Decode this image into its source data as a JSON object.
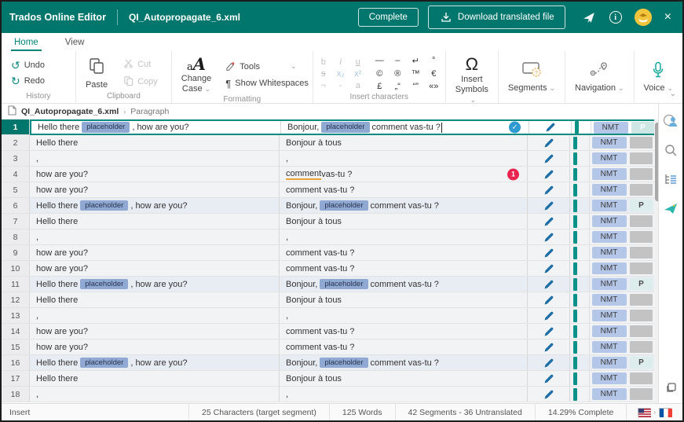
{
  "header": {
    "app_title": "Trados Online Editor",
    "document_tab": "QI_Autopropagate_6.xml",
    "complete_button": "Complete",
    "download_button": "Download translated file",
    "icons": [
      "pin-icon",
      "info-icon",
      "user-avatar",
      "close-icon"
    ]
  },
  "tabs": [
    {
      "label": "Home",
      "active": true
    },
    {
      "label": "View",
      "active": false
    }
  ],
  "ribbon": {
    "history": {
      "label": "History",
      "undo": "Undo",
      "redo": "Redo"
    },
    "clipboard": {
      "label": "Clipboard",
      "paste": "Paste",
      "cut": "Cut",
      "copy": "Copy"
    },
    "formatting": {
      "label": "Formatting",
      "change_case": "Change Case",
      "tools": "Tools",
      "show_whitespaces": "Show Whitespaces"
    },
    "insert_characters": {
      "label": "Insert characters",
      "disabled_chars": [
        "b",
        "i",
        "u",
        "s",
        "x₂",
        "x²",
        "¬",
        "-",
        "a"
      ],
      "special_chars": [
        "—",
        "–",
        "↵",
        "°",
        "©",
        "®",
        "™",
        "€",
        "£",
        "„“",
        "“”",
        "«»"
      ],
      "insert_symbols": "Insert Symbols"
    },
    "segments_label": "Segments",
    "navigation_label": "Navigation",
    "voice_label": "Voice"
  },
  "breadcrumb": {
    "file": "QI_Autopropagate_6.xml",
    "section": "Paragraph"
  },
  "table": {
    "nmt_label": "NMT",
    "rows": [
      {
        "num": "1",
        "source": [
          [
            "t",
            "Hello there "
          ],
          [
            "ph",
            "placeholder"
          ],
          [
            "t",
            " , how are you?"
          ]
        ],
        "target": [
          [
            "t",
            "Bonjour, "
          ],
          [
            "ph",
            "placeholder"
          ],
          [
            "t",
            " comment vas-tu ?"
          ]
        ],
        "state": "selected",
        "status": "confirmed",
        "badge": "NMT",
        "right": "P",
        "right_style": "p-sel"
      },
      {
        "num": "2",
        "source": [
          [
            "t",
            "Hello there"
          ]
        ],
        "target": [
          [
            "t",
            "Bonjour à tous"
          ]
        ],
        "state": "",
        "status": "",
        "badge": "NMT",
        "right": "",
        "right_style": "gray"
      },
      {
        "num": "3",
        "source": [
          [
            "t",
            ","
          ]
        ],
        "target": [
          [
            "t",
            ","
          ]
        ],
        "state": "",
        "status": "",
        "badge": "NMT",
        "right": "",
        "right_style": "gray"
      },
      {
        "num": "4",
        "source": [
          [
            "t",
            "how are you?"
          ]
        ],
        "target": [
          [
            "warn",
            "comment"
          ],
          [
            "t",
            " vas-tu ?"
          ]
        ],
        "state": "",
        "status": "error",
        "error_count": "1",
        "badge": "NMT",
        "right": "",
        "right_style": "gray"
      },
      {
        "num": "5",
        "source": [
          [
            "t",
            "how are you?"
          ]
        ],
        "target": [
          [
            "t",
            "comment vas-tu ?"
          ]
        ],
        "state": "",
        "status": "",
        "badge": "NMT",
        "right": "",
        "right_style": "gray"
      },
      {
        "num": "6",
        "source": [
          [
            "t",
            "Hello there "
          ],
          [
            "ph",
            "placeholder"
          ],
          [
            "t",
            " , how are you?"
          ]
        ],
        "target": [
          [
            "t",
            "Bonjour, "
          ],
          [
            "ph",
            "placeholder"
          ],
          [
            "t",
            " comment vas-tu ?"
          ]
        ],
        "state": "tinted",
        "status": "",
        "badge": "NMT",
        "right": "P",
        "right_style": "p"
      },
      {
        "num": "7",
        "source": [
          [
            "t",
            "Hello there"
          ]
        ],
        "target": [
          [
            "t",
            "Bonjour à tous"
          ]
        ],
        "state": "",
        "status": "",
        "badge": "NMT",
        "right": "",
        "right_style": "gray"
      },
      {
        "num": "8",
        "source": [
          [
            "t",
            ","
          ]
        ],
        "target": [
          [
            "t",
            ","
          ]
        ],
        "state": "",
        "status": "",
        "badge": "NMT",
        "right": "",
        "right_style": "gray"
      },
      {
        "num": "9",
        "source": [
          [
            "t",
            "how are you?"
          ]
        ],
        "target": [
          [
            "t",
            "comment vas-tu ?"
          ]
        ],
        "state": "",
        "status": "",
        "badge": "NMT",
        "right": "",
        "right_style": "gray"
      },
      {
        "num": "10",
        "source": [
          [
            "t",
            "how are you?"
          ]
        ],
        "target": [
          [
            "t",
            "comment vas-tu ?"
          ]
        ],
        "state": "",
        "status": "",
        "badge": "NMT",
        "right": "",
        "right_style": "gray"
      },
      {
        "num": "11",
        "source": [
          [
            "t",
            "Hello there "
          ],
          [
            "ph",
            "placeholder"
          ],
          [
            "t",
            " , how are you?"
          ]
        ],
        "target": [
          [
            "t",
            "Bonjour, "
          ],
          [
            "ph",
            "placeholder"
          ],
          [
            "t",
            " comment vas-tu ?"
          ]
        ],
        "state": "tinted",
        "status": "",
        "badge": "NMT",
        "right": "P",
        "right_style": "p"
      },
      {
        "num": "12",
        "source": [
          [
            "t",
            "Hello there"
          ]
        ],
        "target": [
          [
            "t",
            "Bonjour à tous"
          ]
        ],
        "state": "",
        "status": "",
        "badge": "NMT",
        "right": "",
        "right_style": "gray"
      },
      {
        "num": "13",
        "source": [
          [
            "t",
            ","
          ]
        ],
        "target": [
          [
            "t",
            ","
          ]
        ],
        "state": "",
        "status": "",
        "badge": "NMT",
        "right": "",
        "right_style": "gray"
      },
      {
        "num": "14",
        "source": [
          [
            "t",
            "how are you?"
          ]
        ],
        "target": [
          [
            "t",
            "comment vas-tu ?"
          ]
        ],
        "state": "",
        "status": "",
        "badge": "NMT",
        "right": "",
        "right_style": "gray"
      },
      {
        "num": "15",
        "source": [
          [
            "t",
            "how are you?"
          ]
        ],
        "target": [
          [
            "t",
            "comment vas-tu ?"
          ]
        ],
        "state": "",
        "status": "",
        "badge": "NMT",
        "right": "",
        "right_style": "gray"
      },
      {
        "num": "16",
        "source": [
          [
            "t",
            "Hello there "
          ],
          [
            "ph",
            "placeholder"
          ],
          [
            "t",
            " , how are you?"
          ]
        ],
        "target": [
          [
            "t",
            "Bonjour, "
          ],
          [
            "ph",
            "placeholder"
          ],
          [
            "t",
            " comment vas-tu ?"
          ]
        ],
        "state": "tinted",
        "status": "",
        "badge": "NMT",
        "right": "P",
        "right_style": "p"
      },
      {
        "num": "17",
        "source": [
          [
            "t",
            "Hello there"
          ]
        ],
        "target": [
          [
            "t",
            "Bonjour à tous"
          ]
        ],
        "state": "",
        "status": "",
        "badge": "NMT",
        "right": "",
        "right_style": "gray"
      },
      {
        "num": "18",
        "source": [
          [
            "t",
            ","
          ]
        ],
        "target": [
          [
            "t",
            ","
          ]
        ],
        "state": "",
        "status": "",
        "badge": "NMT",
        "right": "",
        "right_style": "gray"
      }
    ]
  },
  "sidebar_icons": [
    "comments-user-icon",
    "search-icon",
    "document-structure-icon",
    "feedback-plane-icon",
    "compact-view-icon"
  ],
  "statusbar": {
    "mode": "Insert",
    "characters": "25 Characters (target segment)",
    "words": "125 Words",
    "segments": "42 Segments - 36 Untranslated",
    "complete": "14.29% Complete",
    "source_lang": "en-US",
    "target_lang": "fr-FR"
  },
  "colors": {
    "brand_teal": "#00766c",
    "accent_teal": "#0a8a80",
    "segment_bar": "#0b9288",
    "nmt_badge": "#b5c7e9",
    "placeholder_tag": "#8fa9d2",
    "confirm_blue": "#2f9ad0",
    "error_red": "#e8254f",
    "warn_orange": "#e8a33d"
  }
}
